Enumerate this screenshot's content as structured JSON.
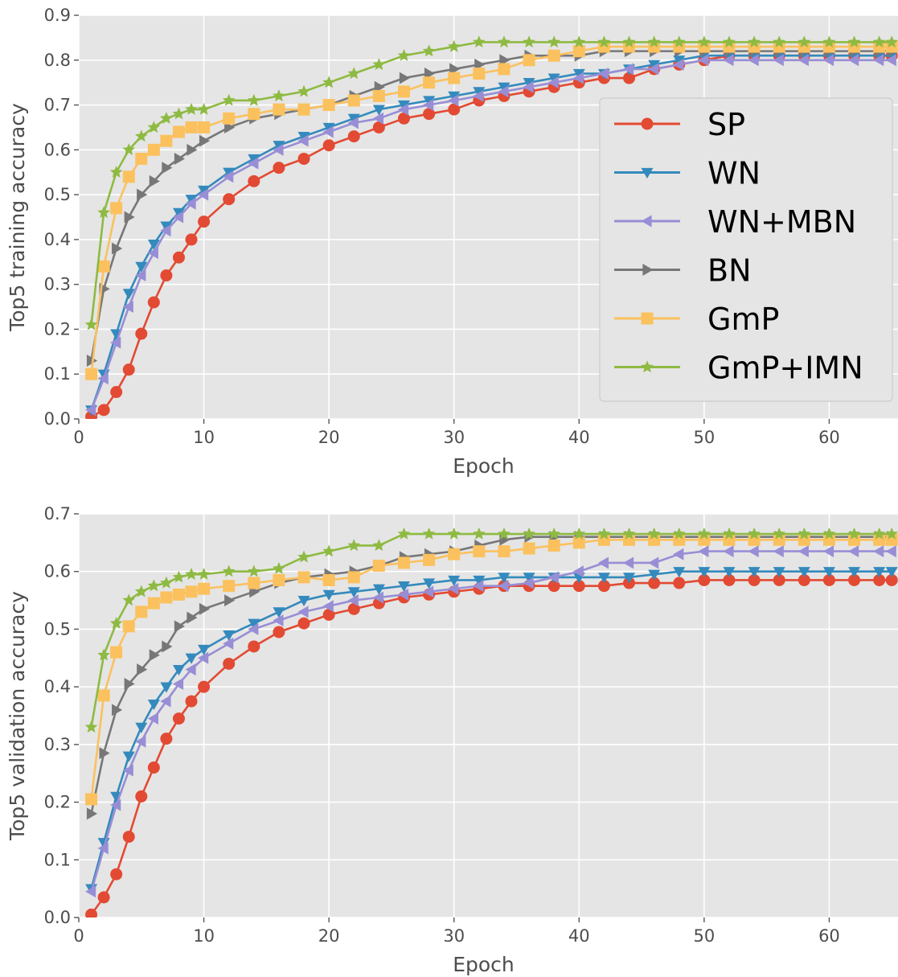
{
  "chart_data": [
    {
      "type": "line",
      "title": "",
      "xlabel": "Epoch",
      "ylabel": "Top5 training accuracy",
      "xlim": [
        0,
        65.5
      ],
      "ylim": [
        0,
        0.9
      ],
      "xticks": [
        "0",
        "10",
        "20",
        "30",
        "40",
        "50",
        "60"
      ],
      "yticks": [
        "0.0",
        "0.1",
        "0.2",
        "0.3",
        "0.4",
        "0.5",
        "0.6",
        "0.7",
        "0.8",
        "0.9"
      ],
      "grid": true,
      "legend_position": "right",
      "x": [
        1,
        2,
        3,
        4,
        5,
        6,
        7,
        8,
        9,
        10,
        12,
        14,
        16,
        18,
        20,
        22,
        24,
        26,
        28,
        30,
        32,
        34,
        36,
        38,
        40,
        42,
        44,
        46,
        48,
        50,
        52,
        54,
        56,
        58,
        60,
        62,
        64,
        65
      ],
      "series": [
        {
          "name": "SP",
          "color": "#E24A33",
          "marker": "circle",
          "values": [
            0.005,
            0.02,
            0.06,
            0.11,
            0.19,
            0.26,
            0.32,
            0.36,
            0.4,
            0.44,
            0.49,
            0.53,
            0.56,
            0.58,
            0.61,
            0.63,
            0.65,
            0.67,
            0.68,
            0.69,
            0.71,
            0.72,
            0.73,
            0.74,
            0.75,
            0.76,
            0.76,
            0.78,
            0.79,
            0.8,
            0.81,
            0.81,
            0.81,
            0.81,
            0.81,
            0.81,
            0.81,
            0.81
          ]
        },
        {
          "name": "WN",
          "color": "#348ABD",
          "marker": "triangle-down",
          "values": [
            0.02,
            0.1,
            0.19,
            0.28,
            0.34,
            0.39,
            0.43,
            0.46,
            0.49,
            0.51,
            0.55,
            0.58,
            0.61,
            0.63,
            0.65,
            0.67,
            0.69,
            0.7,
            0.71,
            0.72,
            0.73,
            0.74,
            0.75,
            0.76,
            0.77,
            0.77,
            0.78,
            0.79,
            0.8,
            0.81,
            0.81,
            0.81,
            0.81,
            0.81,
            0.81,
            0.81,
            0.81,
            0.81
          ]
        },
        {
          "name": "WN+MBN",
          "color": "#988ED5",
          "marker": "triangle-left",
          "values": [
            0.02,
            0.09,
            0.17,
            0.25,
            0.32,
            0.37,
            0.42,
            0.45,
            0.48,
            0.5,
            0.54,
            0.57,
            0.6,
            0.62,
            0.64,
            0.66,
            0.67,
            0.69,
            0.7,
            0.71,
            0.72,
            0.73,
            0.74,
            0.75,
            0.76,
            0.77,
            0.78,
            0.78,
            0.79,
            0.8,
            0.8,
            0.8,
            0.8,
            0.8,
            0.8,
            0.8,
            0.8,
            0.8
          ]
        },
        {
          "name": "BN",
          "color": "#777777",
          "marker": "triangle-right",
          "values": [
            0.13,
            0.29,
            0.38,
            0.45,
            0.5,
            0.53,
            0.56,
            0.58,
            0.6,
            0.62,
            0.65,
            0.67,
            0.68,
            0.69,
            0.7,
            0.72,
            0.74,
            0.76,
            0.77,
            0.78,
            0.79,
            0.8,
            0.81,
            0.81,
            0.81,
            0.82,
            0.82,
            0.82,
            0.82,
            0.82,
            0.82,
            0.82,
            0.82,
            0.82,
            0.82,
            0.82,
            0.82,
            0.82
          ]
        },
        {
          "name": "GmP",
          "color": "#FBC15E",
          "marker": "square",
          "values": [
            0.1,
            0.34,
            0.47,
            0.54,
            0.58,
            0.6,
            0.62,
            0.64,
            0.65,
            0.65,
            0.67,
            0.68,
            0.69,
            0.69,
            0.7,
            0.71,
            0.72,
            0.73,
            0.75,
            0.76,
            0.77,
            0.78,
            0.8,
            0.81,
            0.82,
            0.83,
            0.83,
            0.83,
            0.83,
            0.83,
            0.83,
            0.83,
            0.83,
            0.83,
            0.83,
            0.83,
            0.83,
            0.83
          ]
        },
        {
          "name": "GmP+IMN",
          "color": "#8EBA42",
          "marker": "star",
          "values": [
            0.21,
            0.46,
            0.55,
            0.6,
            0.63,
            0.65,
            0.67,
            0.68,
            0.69,
            0.69,
            0.71,
            0.71,
            0.72,
            0.73,
            0.75,
            0.77,
            0.79,
            0.81,
            0.82,
            0.83,
            0.84,
            0.84,
            0.84,
            0.84,
            0.84,
            0.84,
            0.84,
            0.84,
            0.84,
            0.84,
            0.84,
            0.84,
            0.84,
            0.84,
            0.84,
            0.84,
            0.84,
            0.84
          ]
        }
      ]
    },
    {
      "type": "line",
      "title": "",
      "xlabel": "Epoch",
      "ylabel": "Top5 validation accuracy",
      "xlim": [
        0,
        65.5
      ],
      "ylim": [
        0,
        0.7
      ],
      "xticks": [
        "0",
        "10",
        "20",
        "30",
        "40",
        "50",
        "60"
      ],
      "yticks": [
        "0.0",
        "0.1",
        "0.2",
        "0.3",
        "0.4",
        "0.5",
        "0.6",
        "0.7"
      ],
      "grid": true,
      "legend_position": "none",
      "x": [
        1,
        2,
        3,
        4,
        5,
        6,
        7,
        8,
        9,
        10,
        12,
        14,
        16,
        18,
        20,
        22,
        24,
        26,
        28,
        30,
        32,
        34,
        36,
        38,
        40,
        42,
        44,
        46,
        48,
        50,
        52,
        54,
        56,
        58,
        60,
        62,
        64,
        65
      ],
      "series": [
        {
          "name": "SP",
          "color": "#E24A33",
          "marker": "circle",
          "values": [
            0.005,
            0.035,
            0.075,
            0.14,
            0.21,
            0.26,
            0.31,
            0.345,
            0.375,
            0.4,
            0.44,
            0.47,
            0.495,
            0.51,
            0.525,
            0.535,
            0.545,
            0.555,
            0.56,
            0.565,
            0.57,
            0.575,
            0.575,
            0.575,
            0.575,
            0.575,
            0.58,
            0.58,
            0.58,
            0.585,
            0.585,
            0.585,
            0.585,
            0.585,
            0.585,
            0.585,
            0.585,
            0.585
          ]
        },
        {
          "name": "WN",
          "color": "#348ABD",
          "marker": "triangle-down",
          "values": [
            0.05,
            0.13,
            0.21,
            0.28,
            0.33,
            0.37,
            0.4,
            0.43,
            0.45,
            0.465,
            0.49,
            0.51,
            0.53,
            0.55,
            0.56,
            0.565,
            0.57,
            0.575,
            0.58,
            0.585,
            0.585,
            0.59,
            0.59,
            0.59,
            0.59,
            0.59,
            0.59,
            0.595,
            0.6,
            0.6,
            0.6,
            0.6,
            0.6,
            0.6,
            0.6,
            0.6,
            0.6,
            0.6
          ]
        },
        {
          "name": "WN+MBN",
          "color": "#988ED5",
          "marker": "triangle-left",
          "values": [
            0.045,
            0.12,
            0.195,
            0.255,
            0.305,
            0.345,
            0.375,
            0.405,
            0.43,
            0.45,
            0.475,
            0.5,
            0.515,
            0.53,
            0.54,
            0.55,
            0.555,
            0.56,
            0.565,
            0.57,
            0.575,
            0.575,
            0.58,
            0.59,
            0.6,
            0.615,
            0.615,
            0.615,
            0.63,
            0.635,
            0.635,
            0.635,
            0.635,
            0.635,
            0.635,
            0.635,
            0.635,
            0.635
          ]
        },
        {
          "name": "BN",
          "color": "#777777",
          "marker": "triangle-right",
          "values": [
            0.18,
            0.285,
            0.36,
            0.405,
            0.43,
            0.455,
            0.47,
            0.505,
            0.52,
            0.535,
            0.55,
            0.565,
            0.58,
            0.59,
            0.595,
            0.6,
            0.61,
            0.625,
            0.63,
            0.635,
            0.645,
            0.655,
            0.66,
            0.66,
            0.66,
            0.66,
            0.66,
            0.66,
            0.66,
            0.66,
            0.66,
            0.66,
            0.66,
            0.66,
            0.66,
            0.66,
            0.66,
            0.66
          ]
        },
        {
          "name": "GmP",
          "color": "#FBC15E",
          "marker": "square",
          "values": [
            0.205,
            0.385,
            0.46,
            0.505,
            0.53,
            0.545,
            0.555,
            0.56,
            0.565,
            0.57,
            0.575,
            0.58,
            0.585,
            0.59,
            0.585,
            0.59,
            0.61,
            0.615,
            0.62,
            0.63,
            0.635,
            0.635,
            0.64,
            0.645,
            0.65,
            0.655,
            0.655,
            0.655,
            0.655,
            0.655,
            0.655,
            0.655,
            0.655,
            0.655,
            0.655,
            0.655,
            0.655,
            0.655
          ]
        },
        {
          "name": "GmP+IMN",
          "color": "#8EBA42",
          "marker": "star",
          "values": [
            0.33,
            0.455,
            0.51,
            0.55,
            0.565,
            0.575,
            0.58,
            0.59,
            0.595,
            0.595,
            0.6,
            0.6,
            0.605,
            0.625,
            0.635,
            0.645,
            0.645,
            0.665,
            0.665,
            0.665,
            0.665,
            0.665,
            0.665,
            0.665,
            0.665,
            0.665,
            0.665,
            0.665,
            0.665,
            0.665,
            0.665,
            0.665,
            0.665,
            0.665,
            0.665,
            0.665,
            0.665,
            0.665
          ]
        }
      ]
    }
  ]
}
